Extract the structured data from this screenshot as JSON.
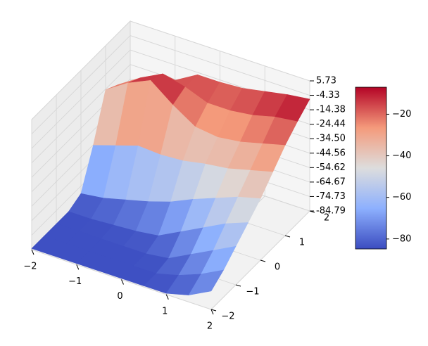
{
  "chart_data": {
    "type": "surface3d",
    "x": [
      -2,
      -1.5,
      -1,
      -0.5,
      0,
      0.5,
      1,
      1.5,
      2
    ],
    "y": [
      -2,
      -1.5,
      -1,
      -0.5,
      0,
      0.5,
      1,
      1.5,
      2
    ],
    "z": [
      [
        -84,
        -84,
        -84,
        -84,
        -80,
        -55,
        -25,
        -30,
        -45
      ],
      [
        -84,
        -84,
        -84,
        -84,
        -78,
        -50,
        -15,
        -20,
        -35
      ],
      [
        -84,
        -84,
        -84,
        -83,
        -74,
        -45,
        -8,
        -12,
        -25
      ],
      [
        -84,
        -84,
        -84,
        -82,
        -70,
        -46,
        -20,
        -16,
        -16
      ],
      [
        -84,
        -84,
        -84,
        -80,
        -65,
        -45,
        -30,
        -22,
        -16
      ],
      [
        -84,
        -84,
        -82,
        -72,
        -58,
        -42,
        -32,
        -22,
        -15
      ],
      [
        -84,
        -80,
        -74,
        -64,
        -52,
        -40,
        -30,
        -20,
        -12
      ],
      [
        -80,
        -74,
        -66,
        -56,
        -46,
        -36,
        -26,
        -16,
        -9
      ],
      [
        -72,
        -66,
        -58,
        -50,
        -42,
        -32,
        -22,
        -14,
        -7
      ]
    ],
    "cmap": "coolwarm",
    "xlim": [
      -2,
      2
    ],
    "ylim": [
      -2,
      2
    ],
    "zlim": [
      -84.79,
      5.73
    ],
    "xticks": [
      {
        "value": -2,
        "label": "−2"
      },
      {
        "value": -1,
        "label": "−1"
      },
      0,
      1,
      2
    ],
    "yticks": [
      {
        "value": -2,
        "label": "−2"
      },
      {
        "value": -1,
        "label": "−1"
      },
      0,
      1,
      2
    ],
    "zticks": [
      5.73,
      -4.33,
      -14.38,
      -24.44,
      {
        "value": -34.5,
        "label": "-34.50"
      },
      -44.56,
      -54.62,
      -64.67,
      -74.73,
      -84.79
    ],
    "grid": true,
    "colorbar": {
      "clim": [
        -84.79,
        -7
      ],
      "ticks": [
        {
          "value": -20,
          "label": "−20"
        },
        {
          "value": -40,
          "label": "−40"
        },
        {
          "value": -60,
          "label": "−60"
        },
        {
          "value": -80,
          "label": "−80"
        }
      ]
    }
  }
}
